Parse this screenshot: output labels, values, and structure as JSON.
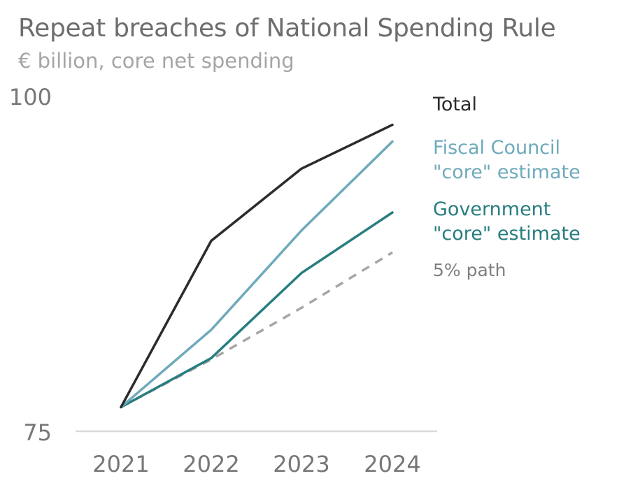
{
  "title": "Repeat breaches of National Spending Rule",
  "subtitle": "€ billion, core net spending",
  "colors": {
    "total": "#2b2b2b",
    "fiscal_council": "#6eaabb",
    "government": "#287d7f",
    "five_pct": "#a6a6a6",
    "axis": "#d9d9d9",
    "tick_text": "#777777"
  },
  "chart_data": {
    "type": "line",
    "title": "Repeat breaches of National Spending Rule",
    "subtitle": "€ billion, core net spending",
    "xlabel": "",
    "ylabel": "",
    "x": [
      "2021",
      "2022",
      "2023",
      "2024"
    ],
    "ylim": [
      75,
      100
    ],
    "y_ticks": [
      75,
      100
    ],
    "grid": false,
    "legend": "right (direct labels)",
    "series": [
      {
        "name": "Total",
        "values": [
          75.9,
          88.8,
          94.4,
          97.8
        ],
        "style": "solid",
        "color": "#2b2b2b"
      },
      {
        "name": "Fiscal Council \"core\" estimate",
        "name_lines": [
          "Fiscal Council",
          "\"core\" estimate"
        ],
        "values": [
          75.9,
          81.9,
          89.6,
          96.5
        ],
        "style": "solid",
        "color": "#6eaabb"
      },
      {
        "name": "Government \"core\" estimate",
        "name_lines": [
          "Government",
          "\"core\" estimate"
        ],
        "values": [
          75.9,
          79.7,
          86.3,
          91.0
        ],
        "style": "solid",
        "color": "#287d7f"
      },
      {
        "name": "5% path",
        "values": [
          75.9,
          79.6,
          83.6,
          87.9
        ],
        "style": "dashed",
        "color": "#a6a6a6"
      }
    ]
  }
}
